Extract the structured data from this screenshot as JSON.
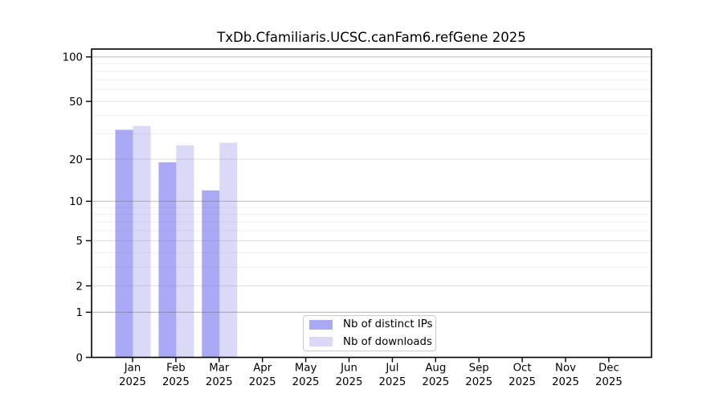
{
  "chart_data": {
    "type": "bar",
    "title": "TxDb.Cfamiliaris.UCSC.canFam6.refGene 2025",
    "categories": [
      "Jan",
      "Feb",
      "Mar",
      "Apr",
      "May",
      "Jun",
      "Jul",
      "Aug",
      "Sep",
      "Oct",
      "Nov",
      "Dec"
    ],
    "x_tick_second_line": "2025",
    "series": [
      {
        "name": "Nb of distinct IPs",
        "color": "#a9a9f5",
        "values": [
          32,
          19,
          12,
          0,
          0,
          0,
          0,
          0,
          0,
          0,
          0,
          0
        ]
      },
      {
        "name": "Nb of downloads",
        "color": "#dadaf8",
        "values": [
          34,
          25,
          26,
          0,
          0,
          0,
          0,
          0,
          0,
          0,
          0,
          0
        ]
      }
    ],
    "yscale": "log1p",
    "yticks": [
      0,
      1,
      2,
      5,
      10,
      20,
      50,
      100
    ],
    "ylim": [
      0,
      113
    ],
    "xlabel": "",
    "ylabel": "",
    "grid": {
      "major_values": [
        1,
        10,
        100
      ],
      "major_color": "rgba(100,100,100,0.40)",
      "light_values": [
        2,
        5,
        20,
        50
      ],
      "light_color": "rgba(110,110,110,0.22)",
      "minor_values": [
        3,
        4,
        6,
        7,
        8,
        9,
        30,
        40,
        60,
        70,
        80,
        90
      ],
      "minor_color": "rgba(120,120,120,0.12)"
    },
    "axis_color": "#000000",
    "background_color": "#ffffff",
    "legend_position": "bottom-center"
  }
}
